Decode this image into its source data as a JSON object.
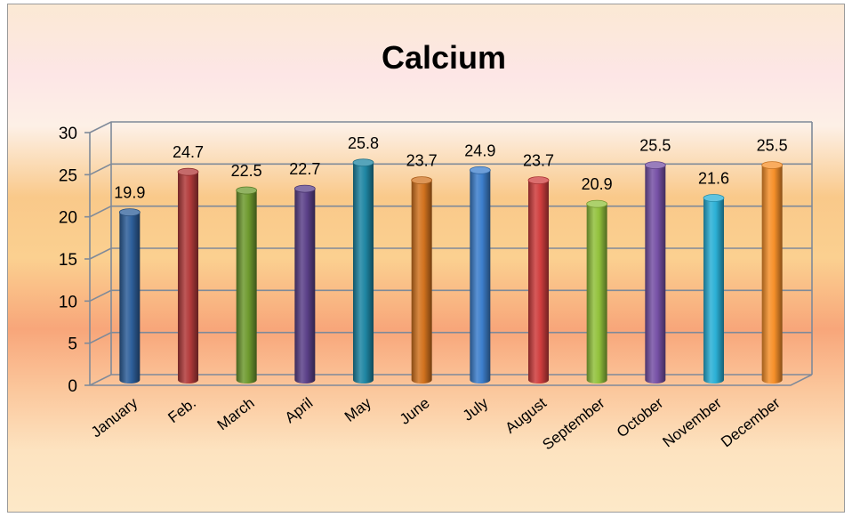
{
  "chart_data": {
    "type": "bar",
    "title": "Calcium",
    "categories": [
      "January",
      "Feb.",
      "March",
      "April",
      "May",
      "June",
      "July",
      "August",
      "September",
      "October",
      "November",
      "December"
    ],
    "values": [
      19.9,
      24.7,
      22.5,
      22.7,
      25.8,
      23.7,
      24.9,
      23.7,
      20.9,
      25.5,
      21.6,
      25.5
    ],
    "ylim": [
      0,
      30
    ],
    "yticks": [
      "0",
      "5",
      "10",
      "15",
      "20",
      "25",
      "30"
    ],
    "grid": true,
    "legend": "none",
    "colors": [
      "#2e5f9a",
      "#b13a3a",
      "#6e9a2f",
      "#5b4189",
      "#1f86a3",
      "#d2731f",
      "#3d7fcc",
      "#cf3d3d",
      "#92c13c",
      "#7751a6",
      "#2bb0d6",
      "#f7902a"
    ]
  }
}
